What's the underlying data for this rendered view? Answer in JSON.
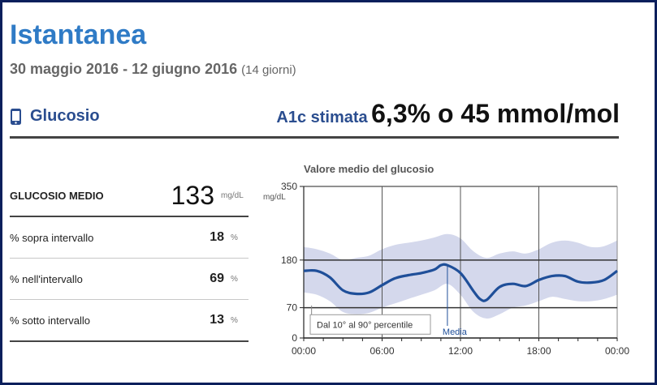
{
  "header": {
    "title": "Istantanea",
    "date_range": "30 maggio 2016 - 12 giugno 2016",
    "days": "(14 giorni)"
  },
  "glucose_section": {
    "title": "Glucosio",
    "icon": "phone-icon",
    "a1c_label": "A1c stimata",
    "a1c_value": "6,3% o 45 mmol/mol"
  },
  "stats": {
    "average_label": "GLUCOSIO MEDIO",
    "average_value": "133",
    "average_unit": "mg/dL",
    "rows": [
      {
        "label": "% sopra intervallo",
        "value": "18",
        "unit": "%"
      },
      {
        "label": "% nell'intervallo",
        "value": "69",
        "unit": "%"
      },
      {
        "label": "% sotto intervallo",
        "value": "13",
        "unit": "%"
      }
    ]
  },
  "chart_data": {
    "type": "line",
    "title": "Valore medio del glucosio",
    "ylabel": "mg/dL",
    "ylim": [
      0,
      350
    ],
    "yticks": [
      {
        "value": 350,
        "label": "350"
      },
      {
        "value": 180,
        "label": "180"
      },
      {
        "value": 70,
        "label": "70"
      },
      {
        "value": 0,
        "label": "0"
      }
    ],
    "xlim": [
      0,
      24
    ],
    "xticks": [
      {
        "value": 0,
        "label": "00:00"
      },
      {
        "value": 6,
        "label": "06:00"
      },
      {
        "value": 12,
        "label": "12:00"
      },
      {
        "value": 18,
        "label": "18:00"
      },
      {
        "value": 24,
        "label": "00:00"
      }
    ],
    "vgrid_hours": [
      6,
      12,
      18
    ],
    "reference_lines": [
      180,
      70
    ],
    "series": [
      {
        "name": "Media",
        "x": [
          0,
          1,
          2,
          3,
          4,
          5,
          6,
          7,
          8,
          9,
          10,
          10.5,
          11,
          12,
          13,
          13.5,
          14,
          15,
          16,
          17,
          18,
          19,
          20,
          21,
          22,
          23,
          24
        ],
        "y": [
          155,
          155,
          140,
          110,
          102,
          105,
          122,
          138,
          145,
          150,
          158,
          168,
          168,
          150,
          108,
          90,
          88,
          118,
          125,
          120,
          134,
          143,
          143,
          130,
          128,
          134,
          155
        ]
      }
    ],
    "band": {
      "name": "Dal 10° al 90° percentile",
      "x": [
        0,
        1,
        2,
        3,
        4,
        5,
        6,
        7,
        8,
        9,
        10,
        11,
        12,
        13,
        14,
        15,
        16,
        17,
        18,
        19,
        20,
        21,
        22,
        23,
        24
      ],
      "upper": [
        210,
        205,
        195,
        180,
        185,
        190,
        205,
        215,
        220,
        225,
        232,
        240,
        230,
        200,
        185,
        195,
        200,
        195,
        205,
        220,
        225,
        220,
        210,
        212,
        225
      ],
      "lower": [
        105,
        100,
        85,
        60,
        55,
        58,
        70,
        80,
        90,
        100,
        110,
        125,
        100,
        60,
        45,
        55,
        70,
        75,
        85,
        95,
        90,
        85,
        85,
        90,
        100
      ]
    },
    "annotations": [
      {
        "text": "Media",
        "x": 11
      },
      {
        "text": "Dal 10° al 90° percentile"
      }
    ],
    "colors": {
      "line": "#1f4f99",
      "band": "#d4d8ec",
      "grid": "#222222"
    }
  }
}
